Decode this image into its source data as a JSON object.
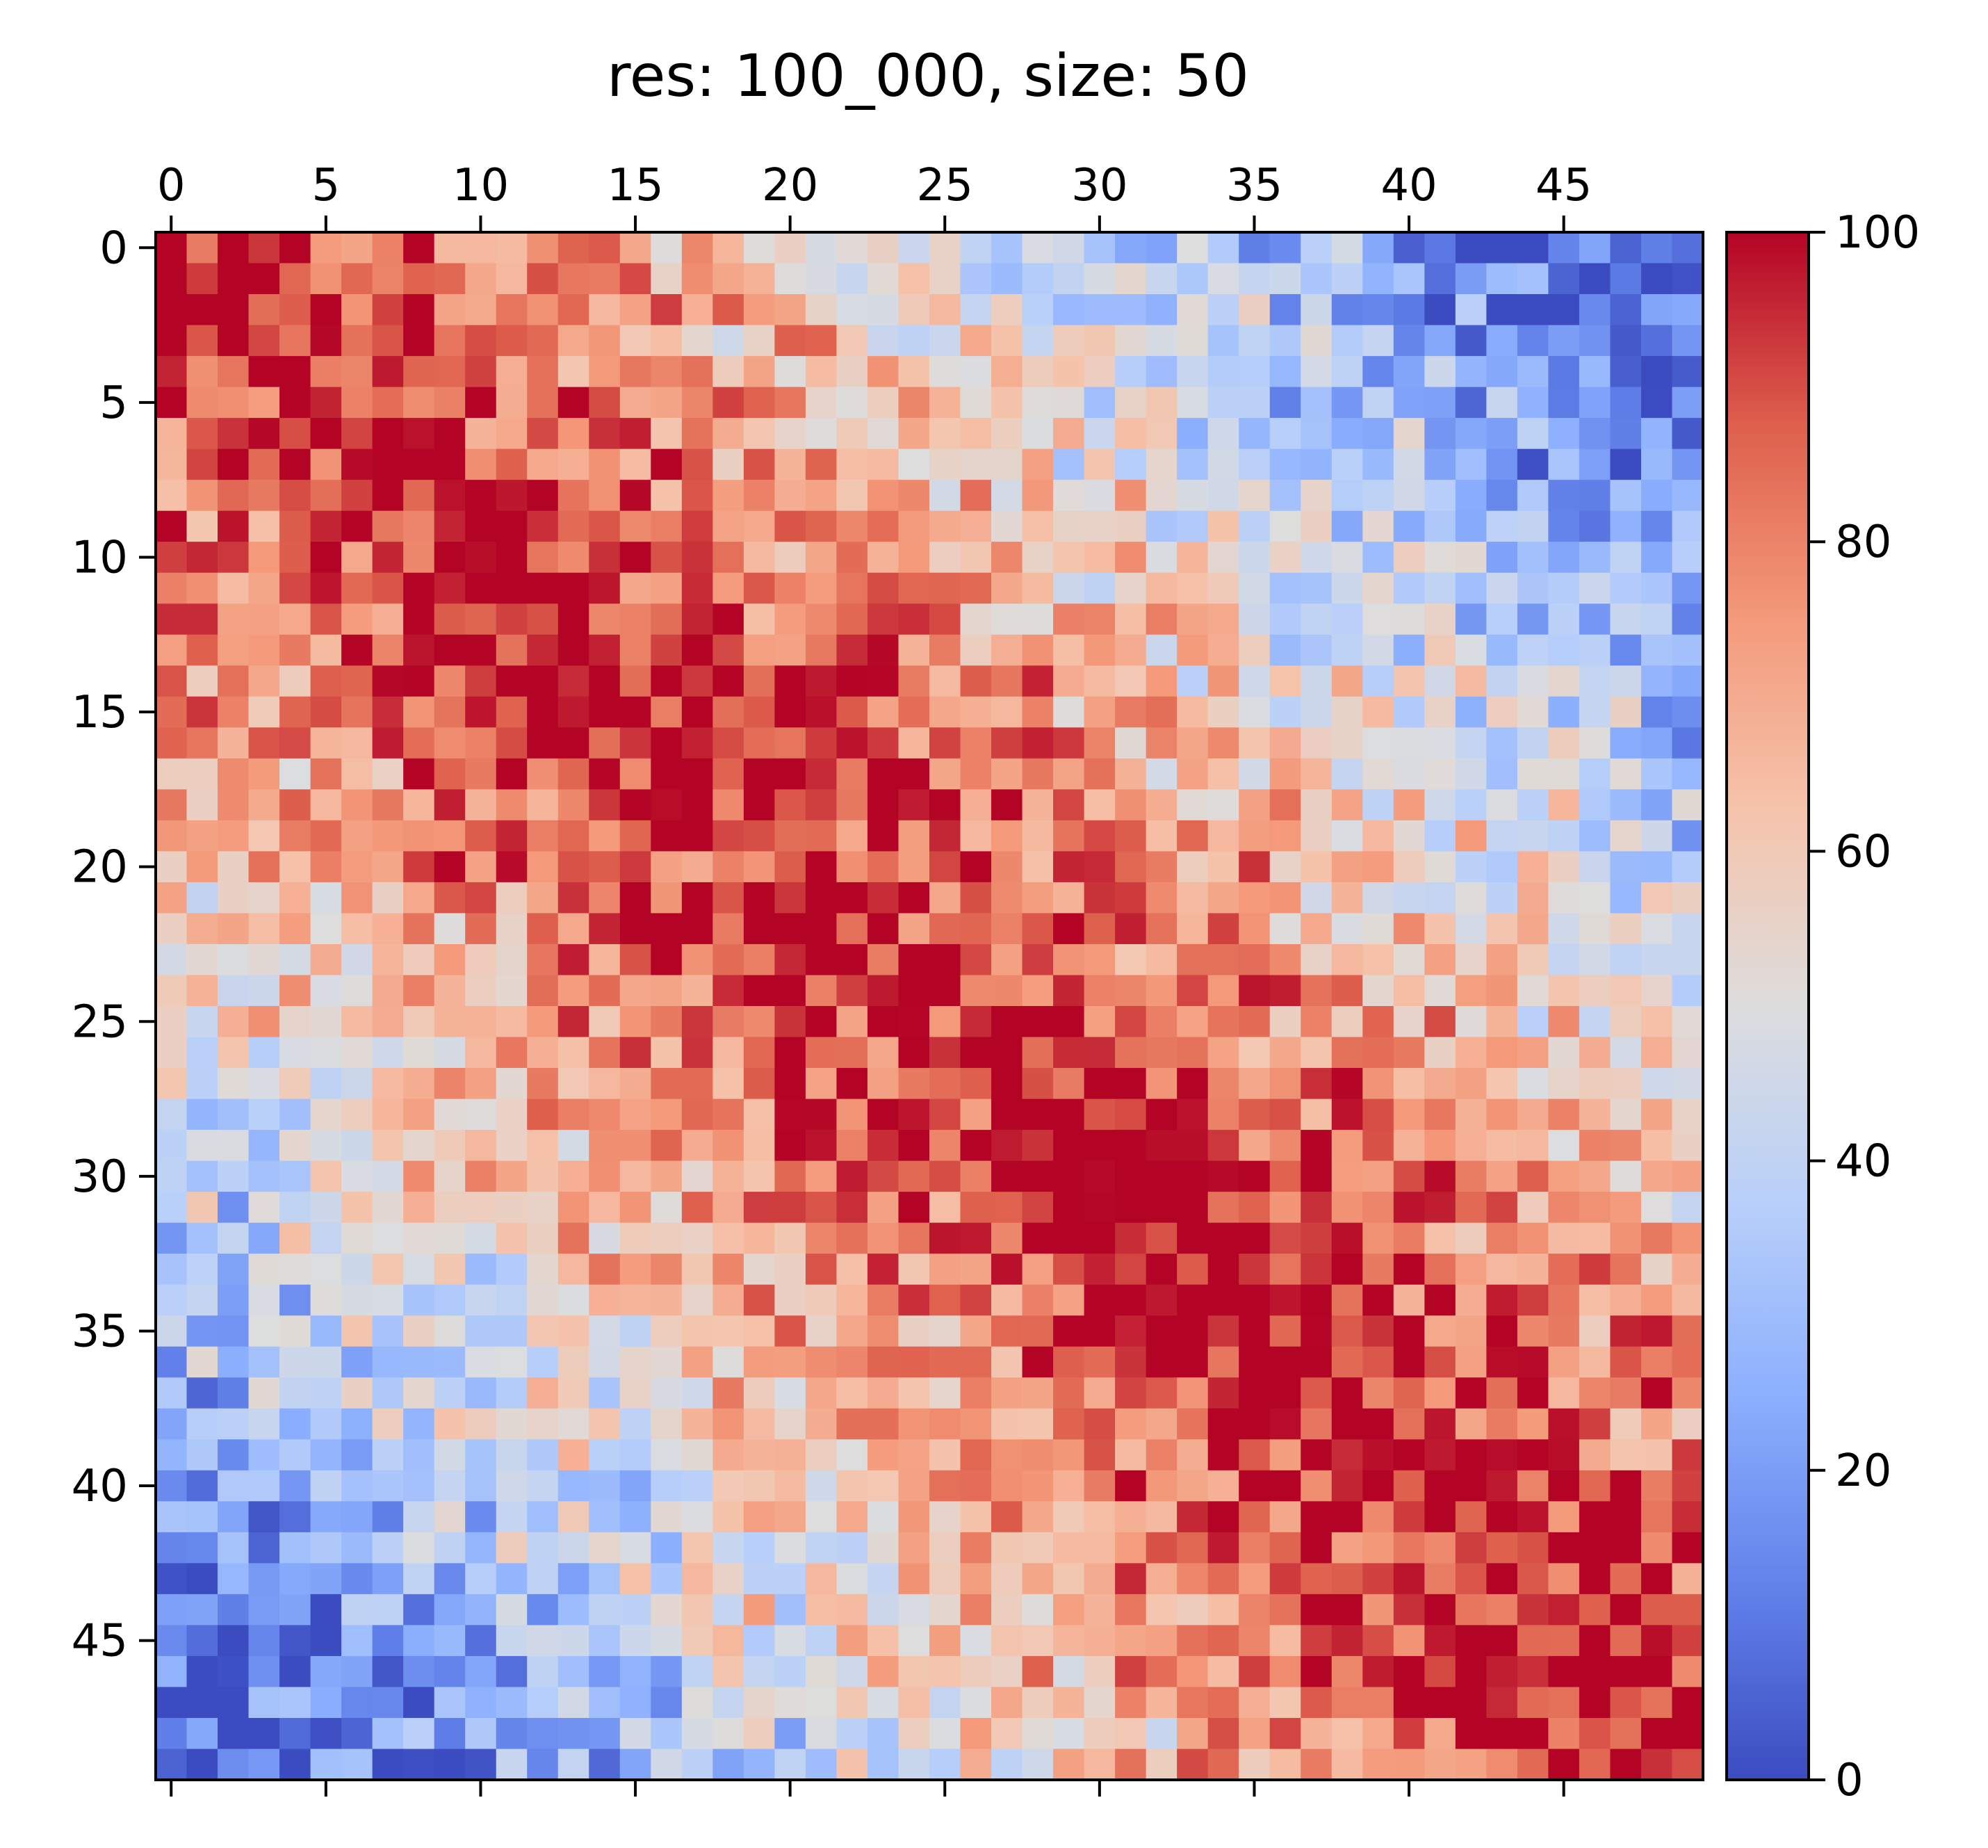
{
  "chart_data": {
    "type": "heatmap",
    "title": "res: 100_000, size: 50",
    "rows": 50,
    "cols": 50,
    "colormap": "coolwarm",
    "colormap_stops": [
      "#3b4cc0",
      "#6282ea",
      "#8db0fe",
      "#b9d0f9",
      "#dddddd",
      "#f5c4ac",
      "#f49a7b",
      "#de604d",
      "#b40426"
    ],
    "x_ticks": [
      "0",
      "5",
      "10",
      "15",
      "20",
      "25",
      "30",
      "35",
      "40",
      "45"
    ],
    "x_tick_positions": [
      0,
      5,
      10,
      15,
      20,
      25,
      30,
      35,
      40,
      45
    ],
    "y_ticks": [
      "0",
      "5",
      "10",
      "15",
      "20",
      "25",
      "30",
      "35",
      "40",
      "45"
    ],
    "y_tick_positions": [
      0,
      5,
      10,
      15,
      20,
      25,
      30,
      35,
      40,
      45
    ],
    "colorbar": {
      "min": 0,
      "max": 100,
      "ticks": [
        "0",
        "20",
        "40",
        "60",
        "80",
        "100"
      ],
      "tick_values": [
        0,
        20,
        40,
        60,
        80,
        100
      ]
    },
    "pattern_description": "Values near 100 at top-left, decreasing with distance; near 0 at top-right and bottom-left, near 100 again at bottom-right (value ≈ 100 * (1 - |row - col| / 49)), with per-cell noise.",
    "anchor_values": [
      {
        "row": 0,
        "col": 0,
        "value": 100
      },
      {
        "row": 0,
        "col": 49,
        "value": 8
      },
      {
        "row": 49,
        "col": 0,
        "value": 5
      },
      {
        "row": 49,
        "col": 49,
        "value": 90
      },
      {
        "row": 25,
        "col": 25,
        "value": 75
      },
      {
        "row": 15,
        "col": 40,
        "value": 35
      },
      {
        "row": 40,
        "col": 15,
        "value": 22
      }
    ]
  }
}
